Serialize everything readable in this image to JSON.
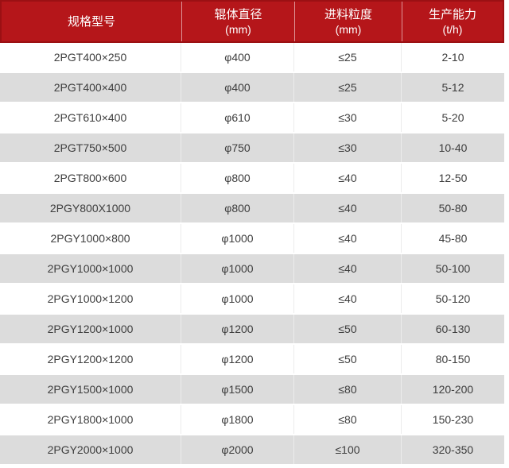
{
  "colors": {
    "header_bg": "#b5161a",
    "header_border": "#9b1013",
    "header_text": "#ffffff",
    "row_bg": "#ffffff",
    "row_alt_bg": "#dcdcdc",
    "body_text": "#3d3d3d"
  },
  "table": {
    "columns": [
      {
        "title": "规格型号",
        "unit": ""
      },
      {
        "title": "辊体直径",
        "unit": "(mm)"
      },
      {
        "title": "进料粒度",
        "unit": "(mm)"
      },
      {
        "title": "生产能力",
        "unit": "(t/h)"
      }
    ],
    "rows": [
      [
        "2PGT400×250",
        "φ400",
        "≤25",
        "2-10"
      ],
      [
        "2PGT400×400",
        "φ400",
        "≤25",
        "5-12"
      ],
      [
        "2PGT610×400",
        "φ610",
        "≤30",
        "5-20"
      ],
      [
        "2PGT750×500",
        "φ750",
        "≤30",
        "10-40"
      ],
      [
        "2PGT800×600",
        "φ800",
        "≤40",
        "12-50"
      ],
      [
        "2PGY800X1000",
        "φ800",
        "≤40",
        "50-80"
      ],
      [
        "2PGY1000×800",
        "φ1000",
        "≤40",
        "45-80"
      ],
      [
        "2PGY1000×1000",
        "φ1000",
        "≤40",
        "50-100"
      ],
      [
        "2PGY1000×1200",
        "φ1000",
        "≤40",
        "50-120"
      ],
      [
        "2PGY1200×1000",
        "φ1200",
        "≤50",
        "60-130"
      ],
      [
        "2PGY1200×1200",
        "φ1200",
        "≤50",
        "80-150"
      ],
      [
        "2PGY1500×1000",
        "φ1500",
        "≤80",
        "120-200"
      ],
      [
        "2PGY1800×1000",
        "φ1800",
        "≤80",
        "150-230"
      ],
      [
        "2PGY2000×1000",
        "φ2000",
        "≤100",
        "320-350"
      ]
    ]
  },
  "chart_data": {
    "type": "table",
    "title": "",
    "columns": [
      "规格型号",
      "辊体直径 (mm)",
      "进料粒度 (mm)",
      "生产能力 (t/h)"
    ],
    "rows": [
      [
        "2PGT400×250",
        "φ400",
        "≤25",
        "2-10"
      ],
      [
        "2PGT400×400",
        "φ400",
        "≤25",
        "5-12"
      ],
      [
        "2PGT610×400",
        "φ610",
        "≤30",
        "5-20"
      ],
      [
        "2PGT750×500",
        "φ750",
        "≤30",
        "10-40"
      ],
      [
        "2PGT800×600",
        "φ800",
        "≤40",
        "12-50"
      ],
      [
        "2PGY800X1000",
        "φ800",
        "≤40",
        "50-80"
      ],
      [
        "2PGY1000×800",
        "φ1000",
        "≤40",
        "45-80"
      ],
      [
        "2PGY1000×1000",
        "φ1000",
        "≤40",
        "50-100"
      ],
      [
        "2PGY1000×1200",
        "φ1000",
        "≤40",
        "50-120"
      ],
      [
        "2PGY1200×1000",
        "φ1200",
        "≤50",
        "60-130"
      ],
      [
        "2PGY1200×1200",
        "φ1200",
        "≤50",
        "80-150"
      ],
      [
        "2PGY1500×1000",
        "φ1500",
        "≤80",
        "120-200"
      ],
      [
        "2PGY1800×1000",
        "φ1800",
        "≤80",
        "150-230"
      ],
      [
        "2PGY2000×1000",
        "φ2000",
        "≤100",
        "320-350"
      ]
    ]
  }
}
